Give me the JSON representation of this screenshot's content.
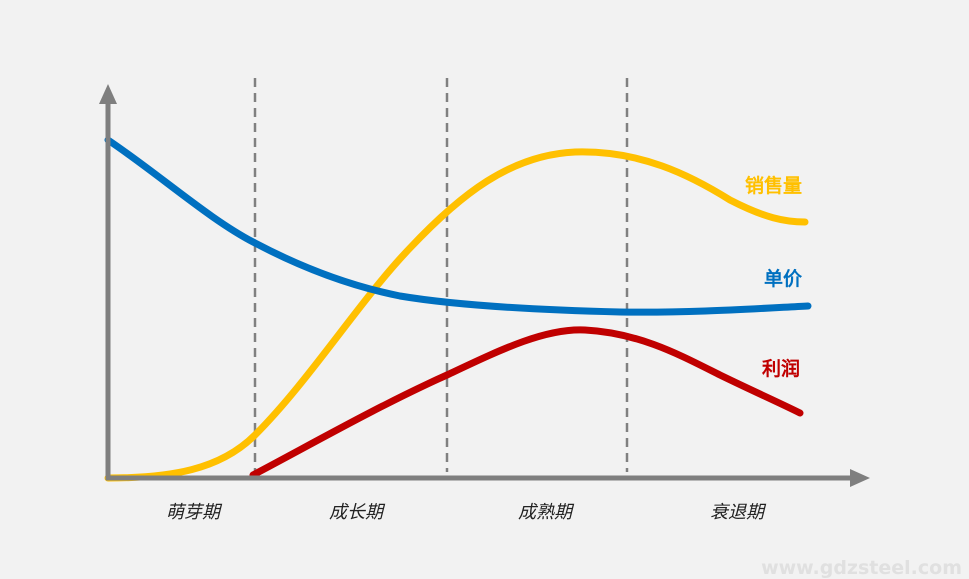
{
  "colors": {
    "background": "#f2f2f2",
    "axis": "#7f7f7f",
    "divider": "#808080",
    "sales": "#ffc000",
    "price": "#0070c0",
    "profit": "#c00000",
    "watermark": "#e0e0e0"
  },
  "labels": {
    "sales": "销售量",
    "price": "单价",
    "profit": "利润"
  },
  "stages": {
    "introduction": "萌芽期",
    "growth": "成长期",
    "maturity": "成熟期",
    "decline": "衰退期"
  },
  "watermark": "www.gdzsteel.com"
}
